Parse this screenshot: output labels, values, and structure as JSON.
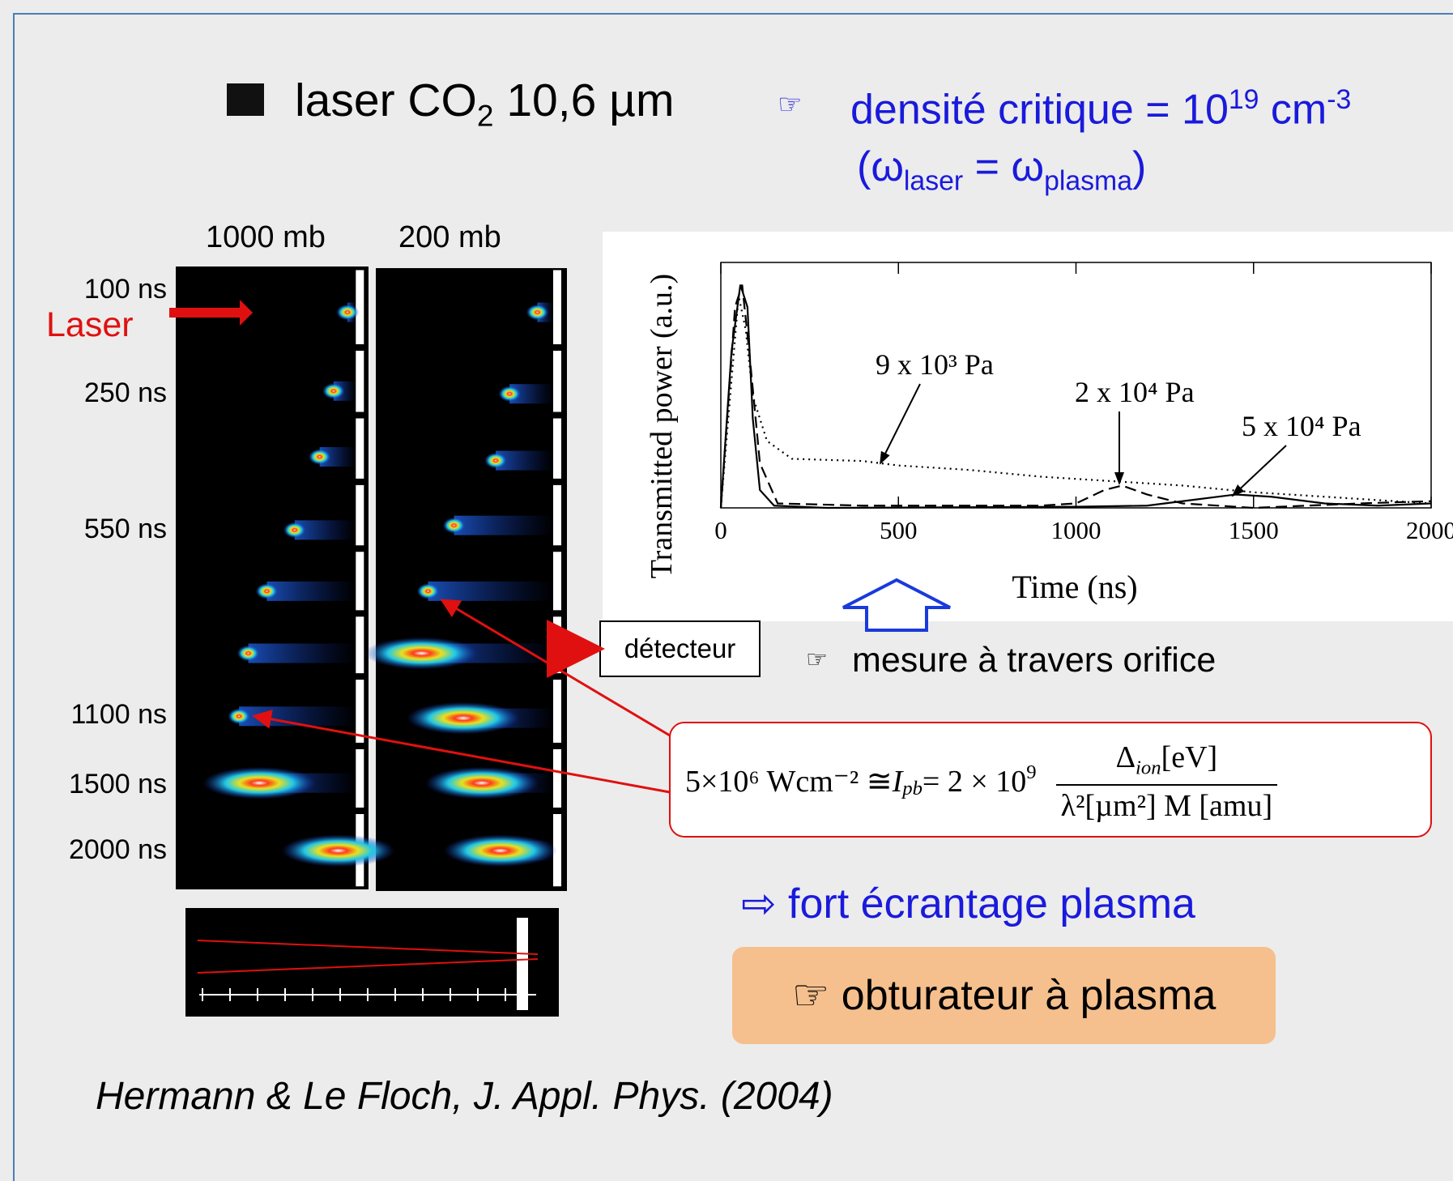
{
  "title": {
    "text": "laser CO",
    "subscript": "2",
    "rest": " 10,6 µm"
  },
  "density": {
    "icon": "☞",
    "text": "densité critique = 10",
    "exp": "19",
    "unit": " cm",
    "unit_exp": "-3"
  },
  "condition": {
    "open": "(ω",
    "sub1": "laser",
    "mid": " = ω",
    "sub2": "plasma",
    "close": ")"
  },
  "images": {
    "columns": [
      "1000 mb",
      "200 mb"
    ],
    "times": [
      "100 ns",
      "250 ns",
      "550 ns",
      "1100 ns",
      "1500 ns",
      "2000 ns"
    ],
    "laser_label": "Laser",
    "detector": "détecteur"
  },
  "plot": {
    "type": "line",
    "x_label": "Time (ns)",
    "y_label": "Transmitted power (a.u.)",
    "xlim": [
      0,
      2000
    ],
    "ylim": [
      0,
      1.1
    ],
    "xticks": [
      0,
      500,
      1000,
      1500,
      2000
    ],
    "series": [
      {
        "name": "9 x 10³ Pa",
        "style": "dotted",
        "color": "#000000",
        "x": [
          0,
          50,
          70,
          90,
          130,
          200,
          400,
          500,
          700,
          900,
          1100,
          1300,
          1500,
          1700,
          1900,
          2000
        ],
        "values": [
          0,
          0.95,
          0.8,
          0.5,
          0.3,
          0.22,
          0.21,
          0.19,
          0.17,
          0.14,
          0.12,
          0.1,
          0.07,
          0.05,
          0.03,
          0.02
        ]
      },
      {
        "name": "2 x 10⁴ Pa",
        "style": "dashed",
        "color": "#000000",
        "x": [
          0,
          40,
          60,
          80,
          110,
          160,
          400,
          900,
          1000,
          1080,
          1130,
          1200,
          1300,
          1500,
          1800,
          2000
        ],
        "values": [
          0,
          0.9,
          1.0,
          0.7,
          0.2,
          0.02,
          0.01,
          0.01,
          0.02,
          0.08,
          0.1,
          0.06,
          0.02,
          0,
          0.02,
          0.03
        ]
      },
      {
        "name": "5 x 10⁴ Pa",
        "style": "solid",
        "color": "#000000",
        "x": [
          0,
          30,
          55,
          75,
          90,
          110,
          150,
          300,
          1000,
          1200,
          1300,
          1450,
          1550,
          1700,
          1850,
          2000
        ],
        "values": [
          0,
          0.7,
          1.0,
          0.9,
          0.4,
          0.08,
          0.01,
          0,
          0.005,
          0.01,
          0.03,
          0.06,
          0.05,
          0.02,
          0.01,
          0.02
        ]
      }
    ]
  },
  "note": {
    "icon": "☞",
    "text": "mesure à travers orifice"
  },
  "formula": {
    "lhs": "5×10⁶ Wcm⁻² ≅ ",
    "I": "I",
    "I_sub": "pb",
    "eq": " = 2 × 10",
    "exp": "9",
    "num": "Δ",
    "num_sub": "ion",
    "num_unit": "[eV]",
    "den": "λ²[µm²] M [amu]"
  },
  "conclusion": "⇨ fort écrantage plasma",
  "shutter": "☞ obturateur à plasma",
  "citation": "Hermann & Le Floch, J. Appl. Phys. (2004)"
}
